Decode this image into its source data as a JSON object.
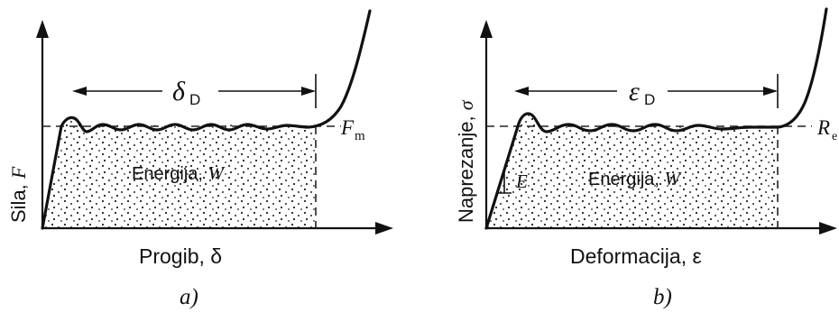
{
  "panel_a": {
    "y_axis_label": "Sila, ",
    "y_axis_symbol": "F",
    "x_axis_label": "Progib, δ",
    "width_symbol": "δ",
    "width_subscript": "D",
    "level_symbol": "F",
    "level_subscript": "m",
    "area_label": "Energija, ",
    "area_symbol": "W",
    "caption": "a)"
  },
  "panel_b": {
    "y_axis_label": "Naprezanje, ",
    "y_axis_symbol": "σ",
    "x_axis_label": "Deformacija, ε",
    "width_symbol": "ε",
    "width_subscript": "D",
    "level_symbol": "R",
    "level_subscript": "e",
    "area_label": "Energija, ",
    "area_symbol": "W",
    "slope_symbol": "E",
    "caption": "b)"
  }
}
